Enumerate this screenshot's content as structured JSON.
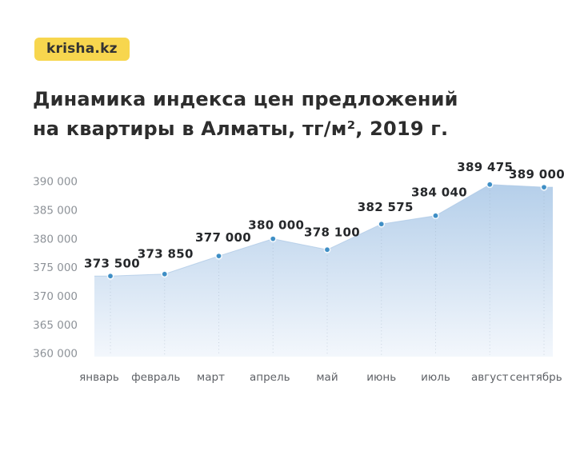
{
  "badge": {
    "label": "krisha.kz"
  },
  "title": {
    "line1": "Динамика индекса цен предложений",
    "line2": "на квартиры в Алматы, тг/м², 2019 г."
  },
  "chart_data": {
    "type": "area",
    "title": "Динамика индекса цен предложений на квартиры в Алматы, тг/м², 2019 г.",
    "categories": [
      "январь",
      "февраль",
      "март",
      "апрель",
      "май",
      "июнь",
      "июль",
      "август",
      "сентябрь"
    ],
    "values": [
      373500,
      373850,
      377000,
      380000,
      378100,
      382575,
      384040,
      389475,
      389000
    ],
    "point_labels": [
      "373 500",
      "373 850",
      "377 000",
      "380 000",
      "378 100",
      "382 575",
      "384 040",
      "389 475",
      "389 000"
    ],
    "y_ticks": [
      390000,
      385000,
      380000,
      375000,
      370000,
      365000,
      360000
    ],
    "y_tick_labels": [
      "390 000",
      "385 000",
      "380 000",
      "375 000",
      "370 000",
      "365 000",
      "360 000"
    ],
    "ylim": [
      360000,
      390000
    ],
    "grid": "vertical-dotted",
    "legend": "none"
  },
  "colors": {
    "brand_yellow": "#F7D64E",
    "badge_text": "#333333",
    "title_text": "#2D2D2D",
    "point_blue": "#3E8EC5",
    "point_ring": "#FFFFFF",
    "area_top": "#B5CFEA",
    "area_bottom": "#F3F7FC",
    "area_edge": "#A9C6E4",
    "grid_line": "#8FA0B5",
    "y_axis_text": "#8D9298",
    "x_axis_text": "#5E6166",
    "point_label_text": "#26282B"
  }
}
